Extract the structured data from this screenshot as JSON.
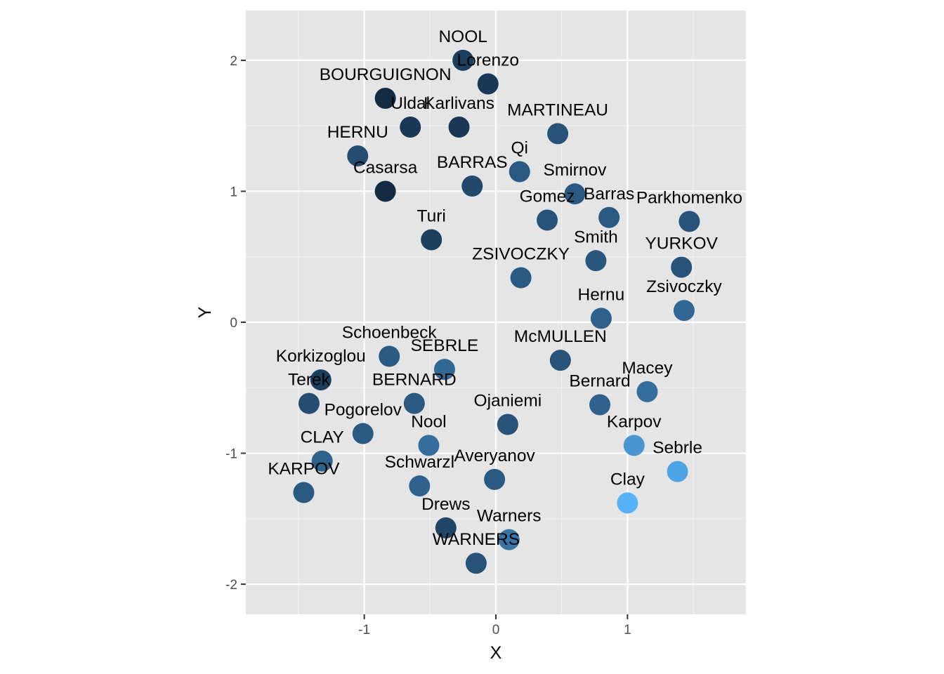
{
  "chart_data": {
    "type": "scatter",
    "title": "",
    "xlabel": "X",
    "ylabel": "Y",
    "xlim": [
      -1.9,
      1.9
    ],
    "ylim": [
      -2.23,
      2.38
    ],
    "x_ticks": [
      -1,
      0,
      1
    ],
    "x_tick_labels": [
      "-1",
      "0",
      "1"
    ],
    "y_ticks": [
      -2,
      -1,
      0,
      1,
      2
    ],
    "y_tick_labels": [
      "-2",
      "-1",
      "0",
      "1",
      "2"
    ],
    "x_minor": [
      -1.5,
      -0.5,
      0.5,
      1.5
    ],
    "y_minor": [
      -1.5,
      -0.5,
      0.5,
      1.5
    ],
    "grid": true,
    "legend": "none",
    "colors": {
      "panel_background": "#e5e5e5",
      "grid_major": "#ffffff",
      "grid_minor": "#f2f2f2",
      "point_dark": "#132b43",
      "point_light": "#56b1f7"
    },
    "points": [
      {
        "name": "NOOL",
        "x": -0.25,
        "y": 2.0,
        "shade": 0.15
      },
      {
        "name": "Lorenzo",
        "x": -0.06,
        "y": 1.82,
        "shade": 0.1
      },
      {
        "name": "BOURGUIGNON",
        "x": -0.84,
        "y": 1.71,
        "shade": 0.0
      },
      {
        "name": "Uldal",
        "x": -0.65,
        "y": 1.49,
        "shade": 0.1
      },
      {
        "name": "Karlivans",
        "x": -0.28,
        "y": 1.49,
        "shade": 0.1
      },
      {
        "name": "MARTINEAU",
        "x": 0.47,
        "y": 1.44,
        "shade": 0.3
      },
      {
        "name": "HERNU",
        "x": -1.05,
        "y": 1.27,
        "shade": 0.25
      },
      {
        "name": "Qi",
        "x": 0.18,
        "y": 1.15,
        "shade": 0.35
      },
      {
        "name": "BARRAS",
        "x": -0.18,
        "y": 1.04,
        "shade": 0.22
      },
      {
        "name": "Casarsa",
        "x": -0.84,
        "y": 1.0,
        "shade": 0.0
      },
      {
        "name": "Smirnov",
        "x": 0.6,
        "y": 0.98,
        "shade": 0.35
      },
      {
        "name": "Barras",
        "x": 0.86,
        "y": 0.8,
        "shade": 0.35
      },
      {
        "name": "Gomez",
        "x": 0.39,
        "y": 0.78,
        "shade": 0.3
      },
      {
        "name": "Parkhomenko",
        "x": 1.47,
        "y": 0.77,
        "shade": 0.3
      },
      {
        "name": "Turi",
        "x": -0.49,
        "y": 0.63,
        "shade": 0.15
      },
      {
        "name": "Smith",
        "x": 0.76,
        "y": 0.47,
        "shade": 0.32
      },
      {
        "name": "YURKOV",
        "x": 1.41,
        "y": 0.42,
        "shade": 0.3
      },
      {
        "name": "ZSIVOCZKY",
        "x": 0.19,
        "y": 0.34,
        "shade": 0.35
      },
      {
        "name": "Zsivoczky",
        "x": 1.43,
        "y": 0.09,
        "shade": 0.45
      },
      {
        "name": "Hernu",
        "x": 0.8,
        "y": 0.03,
        "shade": 0.4
      },
      {
        "name": "Schoenbeck",
        "x": -0.81,
        "y": -0.26,
        "shade": 0.35
      },
      {
        "name": "McMULLEN",
        "x": 0.49,
        "y": -0.29,
        "shade": 0.3
      },
      {
        "name": "SEBRLE",
        "x": -0.39,
        "y": -0.36,
        "shade": 0.45
      },
      {
        "name": "Korkizoglou",
        "x": -1.33,
        "y": -0.44,
        "shade": 0.15
      },
      {
        "name": "Macey",
        "x": 1.15,
        "y": -0.53,
        "shade": 0.5
      },
      {
        "name": "BERNARD",
        "x": -0.62,
        "y": -0.62,
        "shade": 0.35
      },
      {
        "name": "Terek",
        "x": -1.42,
        "y": -0.62,
        "shade": 0.25
      },
      {
        "name": "Bernard",
        "x": 0.79,
        "y": -0.63,
        "shade": 0.4
      },
      {
        "name": "Ojaniemi",
        "x": 0.09,
        "y": -0.78,
        "shade": 0.3
      },
      {
        "name": "Pogorelov",
        "x": -1.01,
        "y": -0.85,
        "shade": 0.35
      },
      {
        "name": "Karpov",
        "x": 1.05,
        "y": -0.94,
        "shade": 0.8
      },
      {
        "name": "Nool",
        "x": -0.51,
        "y": -0.94,
        "shade": 0.5
      },
      {
        "name": "CLAY",
        "x": -1.32,
        "y": -1.06,
        "shade": 0.4
      },
      {
        "name": "Sebrle",
        "x": 1.38,
        "y": -1.14,
        "shade": 0.9
      },
      {
        "name": "Averyanov",
        "x": -0.01,
        "y": -1.2,
        "shade": 0.35
      },
      {
        "name": "Schwarzl",
        "x": -0.58,
        "y": -1.25,
        "shade": 0.4
      },
      {
        "name": "KARPOV",
        "x": -1.46,
        "y": -1.3,
        "shade": 0.35
      },
      {
        "name": "Clay",
        "x": 1.0,
        "y": -1.38,
        "shade": 1.0
      },
      {
        "name": "Drews",
        "x": -0.38,
        "y": -1.57,
        "shade": 0.2
      },
      {
        "name": "Warners",
        "x": 0.1,
        "y": -1.66,
        "shade": 0.55
      },
      {
        "name": "WARNERS",
        "x": -0.15,
        "y": -1.84,
        "shade": 0.3
      }
    ]
  }
}
